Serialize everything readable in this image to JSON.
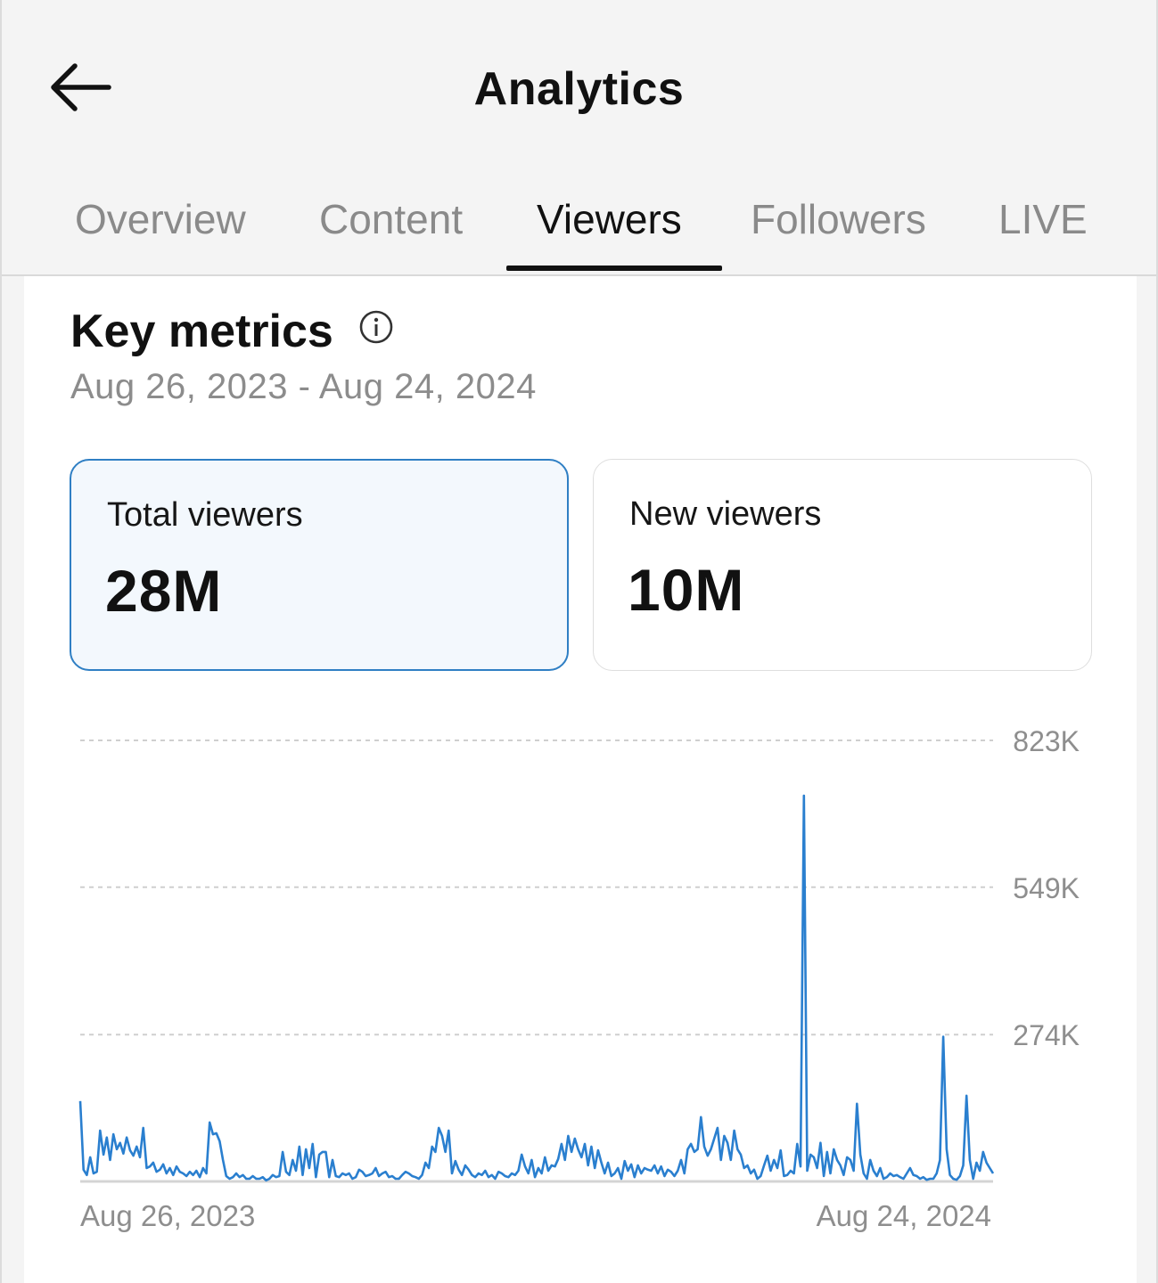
{
  "header": {
    "title": "Analytics",
    "back_icon": "arrow-left-icon"
  },
  "tabs": [
    {
      "label": "Overview",
      "active": false
    },
    {
      "label": "Content",
      "active": false
    },
    {
      "label": "Viewers",
      "active": true
    },
    {
      "label": "Followers",
      "active": false
    },
    {
      "label": "LIVE",
      "active": false
    }
  ],
  "key_metrics": {
    "title": "Key metrics",
    "info_icon": "info-icon",
    "date_range": "Aug 26, 2023 - Aug 24, 2024"
  },
  "cards": [
    {
      "label": "Total viewers",
      "value": "28M",
      "selected": true
    },
    {
      "label": "New viewers",
      "value": "10M",
      "selected": false
    }
  ],
  "colors": {
    "line": "#2a7fcf",
    "selected_card_border": "#2f7fc4",
    "selected_card_bg": "#f3f8fd"
  },
  "chart_data": {
    "type": "line",
    "series": [
      {
        "values": [
          150,
          22,
          12,
          45,
          15,
          18,
          95,
          50,
          82,
          40,
          88,
          60,
          72,
          52,
          82,
          58,
          48,
          65,
          45,
          100,
          25,
          28,
          35,
          18,
          22,
          32,
          15,
          25,
          12,
          28,
          18,
          15,
          10,
          18,
          12,
          20,
          8,
          25,
          15,
          110,
          88,
          90,
          75,
          40,
          10,
          5,
          8,
          15,
          8,
          12,
          5,
          5,
          10,
          5,
          5,
          8,
          2,
          5,
          12,
          8,
          10,
          55,
          18,
          12,
          40,
          20,
          65,
          12,
          60,
          25,
          70,
          8,
          50,
          55,
          55,
          8,
          40,
          10,
          8,
          15,
          12,
          15,
          5,
          8,
          22,
          18,
          10,
          12,
          15,
          25,
          10,
          15,
          18,
          8,
          10,
          5,
          5,
          12,
          18,
          15,
          10,
          8,
          5,
          12,
          35,
          25,
          65,
          55,
          100,
          85,
          55,
          95,
          15,
          38,
          22,
          12,
          30,
          22,
          12,
          8,
          15,
          12,
          20,
          8,
          12,
          5,
          18,
          15,
          10,
          8,
          15,
          12,
          20,
          50,
          28,
          15,
          40,
          8,
          25,
          15,
          45,
          20,
          30,
          28,
          42,
          70,
          40,
          85,
          55,
          80,
          60,
          45,
          70,
          30,
          65,
          25,
          58,
          35,
          15,
          35,
          10,
          15,
          25,
          5,
          38,
          20,
          32,
          8,
          30,
          15,
          25,
          22,
          20,
          30,
          15,
          28,
          10,
          22,
          18,
          10,
          20,
          40,
          15,
          60,
          70,
          55,
          60,
          120,
          65,
          48,
          60,
          80,
          100,
          40,
          85,
          72,
          40,
          95,
          60,
          50,
          25,
          30,
          15,
          22,
          5,
          10,
          30,
          48,
          20,
          40,
          25,
          58,
          10,
          12,
          20,
          15,
          70,
          28,
          12,
          20,
          50,
          45,
          25,
          72,
          10,
          55,
          15,
          60,
          40,
          30,
          12,
          45,
          40,
          20,
          145,
          50,
          15,
          5,
          40,
          20,
          10,
          25,
          5,
          8,
          15,
          10,
          12,
          8,
          5,
          15,
          25,
          12,
          10,
          5,
          8,
          3,
          5,
          5,
          15,
          40,
          270,
          60,
          12,
          5,
          3,
          10,
          30,
          160,
          40,
          5,
          35,
          20,
          55,
          35,
          25,
          15
        ],
        "spike": {
          "index": 218,
          "value": 720
        }
      }
    ],
    "x_start_label": "Aug 26, 2023",
    "x_end_label": "Aug 24, 2024",
    "y_ticks": [
      "274K",
      "549K",
      "823K"
    ],
    "y_tick_values": [
      274000,
      549000,
      823000
    ],
    "ylim": [
      0,
      823000
    ],
    "grid": "dashed horizontal"
  }
}
